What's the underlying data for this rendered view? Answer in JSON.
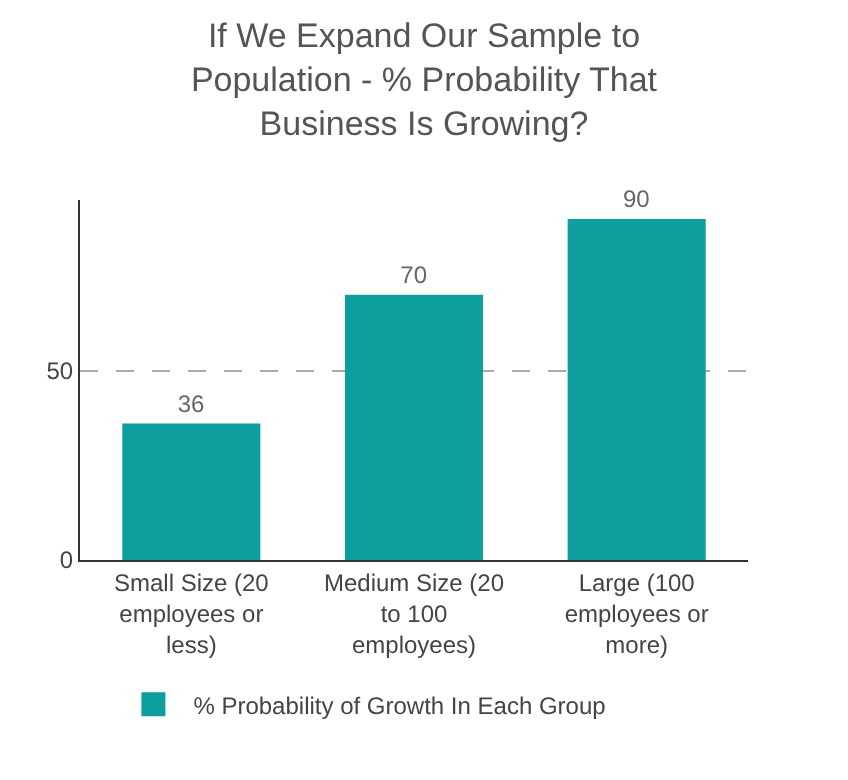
{
  "chart_data": {
    "type": "bar",
    "title": "If We Expand Our Sample to Population - % Probability That Business Is Growing?",
    "categories": [
      "Small Size (20 employees or less)",
      "Medium Size (20 to 100 employees)",
      "Large (100 employees or more)"
    ],
    "series": [
      {
        "name": "% Probability of Growth In Each Group",
        "color": "#0e9e9e",
        "values": [
          36,
          70,
          90
        ]
      }
    ],
    "ylim": [
      0,
      95
    ],
    "yticks": [
      0,
      50
    ],
    "grid": "y",
    "data_labels": true,
    "legend": "bottom"
  }
}
